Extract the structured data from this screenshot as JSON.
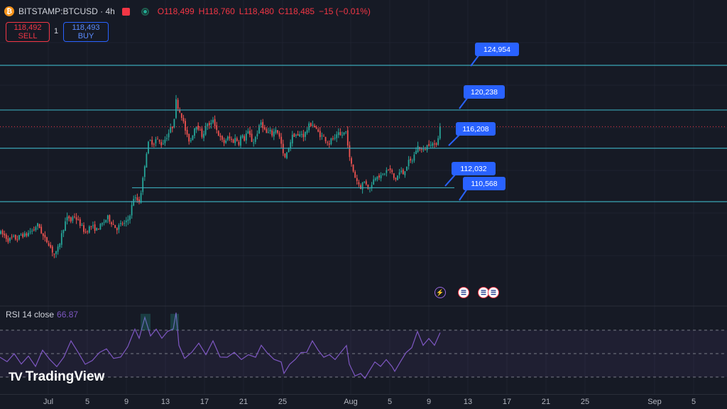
{
  "header": {
    "symbol": "BITSTAMP:BTCUSD · 4h",
    "coin_icon": "bitcoin-icon",
    "open": "O118,499",
    "high": "H118,760",
    "low": "L118,480",
    "close": "C118,485",
    "change": "−15 (−0.01%)"
  },
  "trade": {
    "sell_price": "118,492",
    "sell_label": "SELL",
    "spread": "1",
    "buy_price": "118,493",
    "buy_label": "BUY"
  },
  "indicator": {
    "label": "RSI 14 close",
    "value": "66.87"
  },
  "logo": {
    "text": "TradingView"
  },
  "colors": {
    "bg": "#161a25",
    "up": "#26a69a",
    "down": "#ef5350",
    "level_line": "#3aa7b6",
    "label_bg": "#2962ff",
    "rsi": "#7e57c2",
    "price_line": "#f23645"
  },
  "chart_data": {
    "type": "candlestick",
    "interval": "4h",
    "price_range": [
      103500,
      127000
    ],
    "x_ticks": [
      "Jul",
      "5",
      "9",
      "13",
      "17",
      "21",
      "25",
      "Aug",
      "5",
      "9",
      "13",
      "17",
      "21",
      "25",
      "Sep",
      "5"
    ],
    "levels": [
      124954,
      120238,
      116208,
      112032,
      110568
    ],
    "level_labels": [
      "124,954",
      "120,238",
      "116,208",
      "112,032",
      "110,568"
    ],
    "last_price": 118485,
    "path": [
      [
        0,
        107300
      ],
      [
        6,
        107000
      ],
      [
        12,
        106500
      ],
      [
        18,
        106800
      ],
      [
        24,
        106600
      ],
      [
        30,
        107100
      ],
      [
        36,
        107000
      ],
      [
        42,
        107400
      ],
      [
        48,
        107600
      ],
      [
        52,
        108200
      ],
      [
        56,
        107800
      ],
      [
        60,
        107000
      ],
      [
        64,
        106500
      ],
      [
        68,
        106300
      ],
      [
        72,
        105600
      ],
      [
        76,
        105000
      ],
      [
        80,
        105200
      ],
      [
        84,
        106200
      ],
      [
        88,
        107500
      ],
      [
        92,
        108400
      ],
      [
        96,
        109000
      ],
      [
        100,
        108500
      ],
      [
        104,
        109200
      ],
      [
        108,
        108700
      ],
      [
        112,
        108300
      ],
      [
        116,
        107800
      ],
      [
        120,
        107300
      ],
      [
        124,
        107700
      ],
      [
        128,
        108000
      ],
      [
        132,
        107800
      ],
      [
        136,
        107600
      ],
      [
        140,
        107900
      ],
      [
        144,
        108200
      ],
      [
        148,
        108600
      ],
      [
        152,
        108900
      ],
      [
        156,
        108500
      ],
      [
        160,
        108100
      ],
      [
        164,
        107700
      ],
      [
        168,
        108000
      ],
      [
        172,
        108300
      ],
      [
        176,
        108200
      ],
      [
        180,
        108600
      ],
      [
        184,
        109500
      ],
      [
        188,
        111000
      ],
      [
        192,
        110800
      ],
      [
        196,
        110600
      ],
      [
        200,
        112200
      ],
      [
        204,
        114600
      ],
      [
        208,
        116600
      ],
      [
        212,
        117000
      ],
      [
        216,
        116700
      ],
      [
        220,
        117200
      ],
      [
        224,
        116900
      ],
      [
        228,
        116600
      ],
      [
        232,
        117100
      ],
      [
        236,
        117600
      ],
      [
        240,
        118200
      ],
      [
        244,
        118600
      ],
      [
        248,
        121200
      ],
      [
        252,
        120300
      ],
      [
        256,
        119600
      ],
      [
        260,
        118400
      ],
      [
        264,
        117300
      ],
      [
        268,
        116900
      ],
      [
        272,
        117900
      ],
      [
        276,
        118800
      ],
      [
        280,
        118300
      ],
      [
        284,
        117500
      ],
      [
        288,
        118000
      ],
      [
        292,
        118900
      ],
      [
        296,
        118400
      ],
      [
        300,
        119300
      ],
      [
        304,
        118400
      ],
      [
        308,
        117600
      ],
      [
        312,
        117000
      ],
      [
        316,
        116800
      ],
      [
        320,
        117300
      ],
      [
        324,
        117200
      ],
      [
        328,
        116900
      ],
      [
        332,
        117300
      ],
      [
        336,
        116700
      ],
      [
        340,
        117600
      ],
      [
        344,
        117100
      ],
      [
        348,
        118000
      ],
      [
        352,
        117500
      ],
      [
        356,
        116700
      ],
      [
        360,
        117400
      ],
      [
        364,
        118200
      ],
      [
        368,
        119000
      ],
      [
        372,
        118200
      ],
      [
        376,
        117700
      ],
      [
        380,
        118000
      ],
      [
        384,
        117600
      ],
      [
        388,
        118300
      ],
      [
        392,
        117800
      ],
      [
        396,
        116700
      ],
      [
        400,
        115000
      ],
      [
        404,
        115600
      ],
      [
        408,
        116700
      ],
      [
        412,
        117500
      ],
      [
        416,
        117700
      ],
      [
        420,
        117400
      ],
      [
        424,
        117800
      ],
      [
        428,
        117500
      ],
      [
        432,
        118100
      ],
      [
        436,
        118700
      ],
      [
        440,
        118800
      ],
      [
        444,
        118300
      ],
      [
        448,
        117900
      ],
      [
        452,
        117500
      ],
      [
        456,
        117400
      ],
      [
        460,
        117000
      ],
      [
        464,
        116700
      ],
      [
        468,
        117300
      ],
      [
        472,
        117100
      ],
      [
        476,
        117700
      ],
      [
        480,
        117500
      ],
      [
        484,
        117800
      ],
      [
        488,
        118000
      ],
      [
        492,
        115200
      ],
      [
        496,
        114200
      ],
      [
        500,
        113200
      ],
      [
        504,
        112600
      ],
      [
        508,
        112100
      ],
      [
        512,
        112700
      ],
      [
        516,
        112500
      ],
      [
        520,
        111800
      ],
      [
        524,
        112600
      ],
      [
        528,
        113100
      ],
      [
        532,
        113500
      ],
      [
        536,
        113100
      ],
      [
        540,
        113500
      ],
      [
        544,
        113800
      ],
      [
        548,
        114000
      ],
      [
        552,
        113600
      ],
      [
        556,
        112800
      ],
      [
        560,
        113300
      ],
      [
        564,
        113800
      ],
      [
        568,
        113500
      ],
      [
        572,
        114300
      ],
      [
        576,
        114800
      ],
      [
        580,
        114800
      ],
      [
        584,
        115600
      ],
      [
        588,
        116400
      ],
      [
        592,
        116200
      ],
      [
        596,
        115900
      ],
      [
        600,
        116300
      ],
      [
        604,
        116700
      ],
      [
        608,
        116800
      ],
      [
        612,
        116400
      ],
      [
        616,
        117000
      ],
      [
        620,
        118500
      ]
    ],
    "rsi": {
      "period": 14,
      "value": 66.87,
      "levels": [
        70,
        50,
        30
      ],
      "path": [
        [
          0,
          46
        ],
        [
          10,
          44
        ],
        [
          20,
          49
        ],
        [
          30,
          42
        ],
        [
          40,
          47
        ],
        [
          50,
          40
        ],
        [
          60,
          52
        ],
        [
          70,
          46
        ],
        [
          80,
          38
        ],
        [
          90,
          48
        ],
        [
          100,
          60
        ],
        [
          110,
          52
        ],
        [
          120,
          40
        ],
        [
          130,
          45
        ],
        [
          140,
          50
        ],
        [
          150,
          55
        ],
        [
          160,
          45
        ],
        [
          170,
          48
        ],
        [
          180,
          55
        ],
        [
          186,
          66
        ],
        [
          190,
          70
        ],
        [
          196,
          64
        ],
        [
          204,
          80
        ],
        [
          212,
          66
        ],
        [
          220,
          70
        ],
        [
          228,
          64
        ],
        [
          236,
          68
        ],
        [
          244,
          72
        ],
        [
          248,
          84
        ],
        [
          252,
          58
        ],
        [
          260,
          45
        ],
        [
          270,
          52
        ],
        [
          280,
          58
        ],
        [
          290,
          50
        ],
        [
          300,
          60
        ],
        [
          310,
          48
        ],
        [
          320,
          46
        ],
        [
          330,
          52
        ],
        [
          340,
          44
        ],
        [
          350,
          50
        ],
        [
          360,
          46
        ],
        [
          368,
          58
        ],
        [
          376,
          50
        ],
        [
          386,
          46
        ],
        [
          396,
          42
        ],
        [
          400,
          34
        ],
        [
          408,
          40
        ],
        [
          416,
          46
        ],
        [
          424,
          50
        ],
        [
          432,
          52
        ],
        [
          440,
          60
        ],
        [
          448,
          54
        ],
        [
          456,
          46
        ],
        [
          464,
          50
        ],
        [
          472,
          44
        ],
        [
          480,
          52
        ],
        [
          488,
          56
        ],
        [
          492,
          42
        ],
        [
          500,
          30
        ],
        [
          508,
          34
        ],
        [
          514,
          28
        ],
        [
          520,
          36
        ],
        [
          528,
          42
        ],
        [
          536,
          40
        ],
        [
          544,
          44
        ],
        [
          552,
          40
        ],
        [
          556,
          34
        ],
        [
          564,
          44
        ],
        [
          572,
          50
        ],
        [
          580,
          56
        ],
        [
          588,
          68
        ],
        [
          596,
          58
        ],
        [
          604,
          62
        ],
        [
          612,
          58
        ],
        [
          620,
          67
        ]
      ]
    },
    "events": [
      "lightning-icon",
      "us-flag-icon",
      "us-flag-icon",
      "us-flag-icon"
    ]
  }
}
